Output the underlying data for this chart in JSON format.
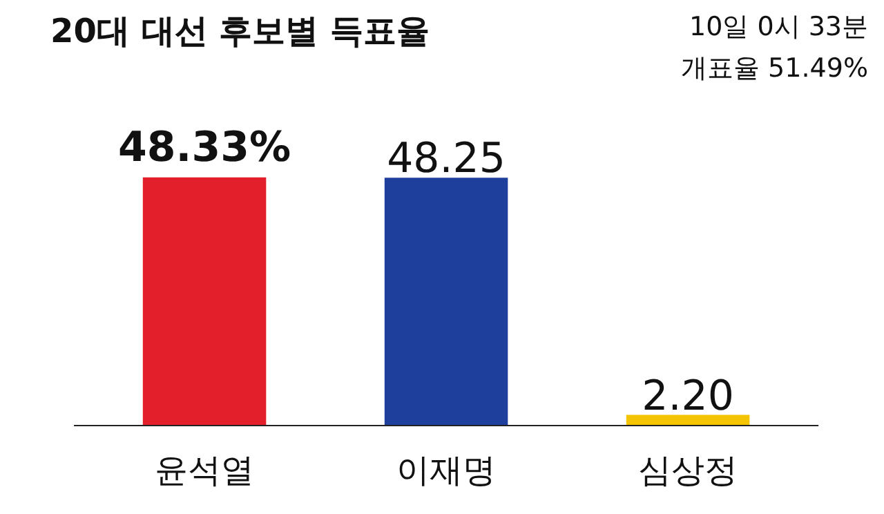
{
  "chart_data": {
    "type": "bar",
    "title": "20대 대선 후보별 득표율",
    "annotations": [
      "10일 0시 33분",
      "개표율 51.49%"
    ],
    "categories": [
      "윤석열",
      "이재명",
      "심상정"
    ],
    "values": [
      48.33,
      48.25,
      2.2
    ],
    "colors": [
      "#e21f2b",
      "#1f3f9c",
      "#f5c400"
    ],
    "value_labels": [
      "48.33%",
      "48.25",
      "2.20"
    ]
  }
}
